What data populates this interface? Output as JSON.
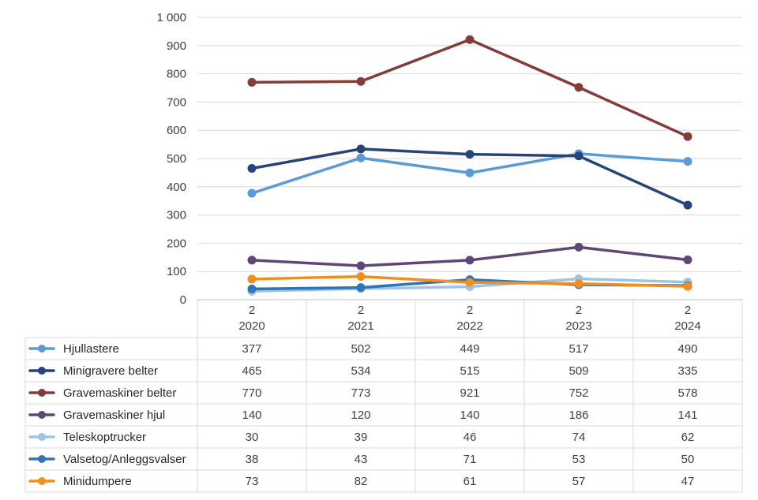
{
  "chart_data": {
    "type": "line",
    "title": "",
    "xlabel": "",
    "ylabel": "",
    "ylim": [
      0,
      1000
    ],
    "yticks": [
      "0",
      "100",
      "200",
      "300",
      "400",
      "500",
      "600",
      "700",
      "800",
      "900",
      "1 000"
    ],
    "yticks_values": [
      0,
      100,
      200,
      300,
      400,
      500,
      600,
      700,
      800,
      900,
      1000
    ],
    "categories": [
      {
        "top": "2",
        "bottom": "2020"
      },
      {
        "top": "2",
        "bottom": "2021"
      },
      {
        "top": "2",
        "bottom": "2022"
      },
      {
        "top": "2",
        "bottom": "2023"
      },
      {
        "top": "2",
        "bottom": "2024"
      }
    ],
    "grid": true,
    "legend": "data-table",
    "series": [
      {
        "name": "Hjullastere",
        "color": "#5b9bd5",
        "values": [
          377,
          502,
          449,
          517,
          490
        ]
      },
      {
        "name": "Minigravere belter",
        "color": "#264478",
        "values": [
          465,
          534,
          515,
          509,
          335
        ]
      },
      {
        "name": "Gravemaskiner belter",
        "color": "#843c39",
        "values": [
          770,
          773,
          921,
          752,
          578
        ]
      },
      {
        "name": "Gravemaskiner hjul",
        "color": "#5e4677",
        "values": [
          140,
          120,
          140,
          186,
          141
        ]
      },
      {
        "name": "Teleskoptrucker",
        "color": "#9dc3e6",
        "values": [
          30,
          39,
          46,
          74,
          62
        ]
      },
      {
        "name": "Valsetog/Anleggsvalser",
        "color": "#2e75b6",
        "values": [
          38,
          43,
          71,
          53,
          50
        ]
      },
      {
        "name": "Minidumpere",
        "color": "#f28e1c",
        "values": [
          73,
          82,
          61,
          57,
          47
        ]
      }
    ]
  }
}
